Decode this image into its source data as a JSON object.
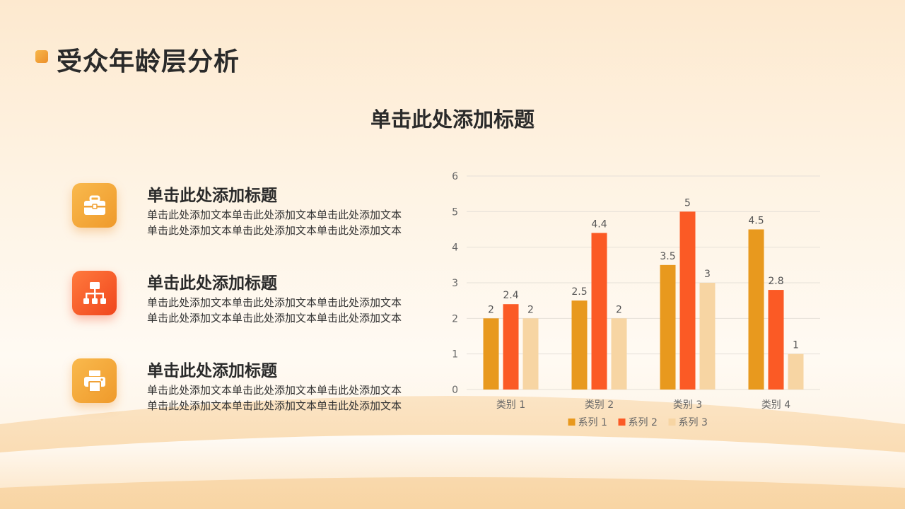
{
  "page": {
    "title": "受众年龄层分析",
    "section_title": "单击此处添加标题"
  },
  "items": [
    {
      "title": "单击此处添加标题",
      "text": "单击此处添加文本单击此处添加文本单击此处添加文本单击此处添加文本单击此处添加文本单击此处添加文本",
      "icon": "toolbox-icon"
    },
    {
      "title": "单击此处添加标题",
      "text": "单击此处添加文本单击此处添加文本单击此处添加文本单击此处添加文本单击此处添加文本单击此处添加文本",
      "icon": "org-chart-icon"
    },
    {
      "title": "单击此处添加标题",
      "text": "单击此处添加文本单击此处添加文本单击此处添加文本单击此处添加文本单击此处添加文本单击此处添加文本",
      "icon": "printer-icon"
    }
  ],
  "colors": {
    "accent": "#ef9a2b",
    "series1": "#e8991e",
    "series2": "#fb5a25",
    "series3": "#f7d5a3",
    "axis_text": "#666666",
    "grid": "#e6e0d8"
  },
  "chart_data": {
    "type": "bar",
    "categories": [
      "类别 1",
      "类别 2",
      "类别 3",
      "类别 4"
    ],
    "series": [
      {
        "name": "系列 1",
        "values": [
          2,
          2.5,
          3.5,
          4.5
        ]
      },
      {
        "name": "系列 2",
        "values": [
          2.4,
          4.4,
          5,
          2.8
        ]
      },
      {
        "name": "系列 3",
        "values": [
          2,
          2,
          3,
          1
        ]
      }
    ],
    "yticks": [
      "0",
      "1",
      "2",
      "3",
      "4",
      "5",
      "6"
    ],
    "ylim": [
      0,
      6
    ],
    "data_labels": true,
    "grid": true,
    "legend": "bottom"
  }
}
